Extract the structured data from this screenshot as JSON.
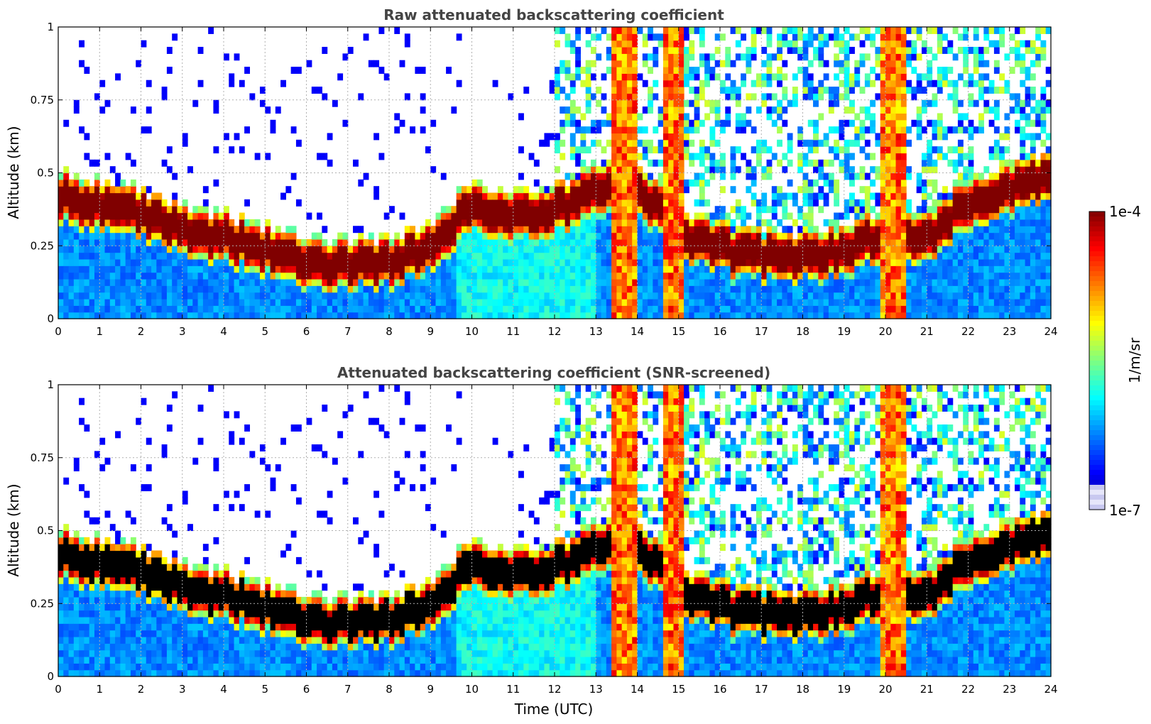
{
  "chart_data": [
    {
      "type": "heatmap",
      "title": "Raw attenuated backscattering coefficient",
      "xlabel": "",
      "ylabel": "Altitude (km)",
      "xlim": [
        0,
        24
      ],
      "ylim": [
        0,
        1
      ],
      "x_ticks": [
        "0",
        "1",
        "2",
        "3",
        "4",
        "5",
        "6",
        "7",
        "8",
        "9",
        "10",
        "11",
        "12",
        "13",
        "14",
        "15",
        "16",
        "17",
        "18",
        "19",
        "20",
        "21",
        "22",
        "23",
        "24"
      ],
      "y_ticks": [
        "0",
        "0.25",
        "0.5",
        "0.75",
        "1"
      ],
      "y_tick_values": [
        0,
        0.25,
        0.5,
        0.75,
        1
      ],
      "grid": true,
      "screened": false,
      "layer_center_km": [
        [
          0,
          0.42
        ],
        [
          1,
          0.39
        ],
        [
          2,
          0.36
        ],
        [
          3,
          0.31
        ],
        [
          4,
          0.28
        ],
        [
          5,
          0.24
        ],
        [
          6,
          0.2
        ],
        [
          7,
          0.18
        ],
        [
          8,
          0.2
        ],
        [
          9,
          0.24
        ],
        [
          10,
          0.39
        ],
        [
          11,
          0.36
        ],
        [
          12,
          0.37
        ],
        [
          13,
          0.45
        ],
        [
          14,
          0.44
        ],
        [
          15,
          0.3
        ],
        [
          16,
          0.24
        ],
        [
          17,
          0.22
        ],
        [
          18,
          0.21
        ],
        [
          19,
          0.24
        ],
        [
          20,
          0.3
        ],
        [
          21,
          0.27
        ],
        [
          22,
          0.4
        ],
        [
          23,
          0.45
        ],
        [
          24,
          0.48
        ]
      ],
      "plumes": [
        {
          "start": 13.35,
          "end": 13.95
        },
        {
          "start": 14.6,
          "end": 15.15
        },
        {
          "start": 19.9,
          "end": 20.45
        }
      ]
    },
    {
      "type": "heatmap",
      "title": "Attenuated backscattering coefficient (SNR-screened)",
      "xlabel": "Time (UTC)",
      "ylabel": "Altitude (km)",
      "xlim": [
        0,
        24
      ],
      "ylim": [
        0,
        1
      ],
      "x_ticks": [
        "0",
        "1",
        "2",
        "3",
        "4",
        "5",
        "6",
        "7",
        "8",
        "9",
        "10",
        "11",
        "12",
        "13",
        "14",
        "15",
        "16",
        "17",
        "18",
        "19",
        "20",
        "21",
        "22",
        "23",
        "24"
      ],
      "y_ticks": [
        "0",
        "0.25",
        "0.5",
        "0.75",
        "1"
      ],
      "y_tick_values": [
        0,
        0.25,
        0.5,
        0.75,
        1
      ],
      "grid": true,
      "screened": true,
      "layer_center_km": [
        [
          0,
          0.42
        ],
        [
          1,
          0.39
        ],
        [
          2,
          0.36
        ],
        [
          3,
          0.31
        ],
        [
          4,
          0.28
        ],
        [
          5,
          0.24
        ],
        [
          6,
          0.2
        ],
        [
          7,
          0.18
        ],
        [
          8,
          0.2
        ],
        [
          9,
          0.24
        ],
        [
          10,
          0.39
        ],
        [
          11,
          0.36
        ],
        [
          12,
          0.37
        ],
        [
          13,
          0.45
        ],
        [
          14,
          0.44
        ],
        [
          15,
          0.3
        ],
        [
          16,
          0.24
        ],
        [
          17,
          0.22
        ],
        [
          18,
          0.21
        ],
        [
          19,
          0.24
        ],
        [
          20,
          0.3
        ],
        [
          21,
          0.27
        ],
        [
          22,
          0.4
        ],
        [
          23,
          0.45
        ],
        [
          24,
          0.48
        ]
      ],
      "plumes": [
        {
          "start": 13.35,
          "end": 13.95
        },
        {
          "start": 14.6,
          "end": 15.15
        },
        {
          "start": 19.9,
          "end": 20.45
        }
      ]
    }
  ],
  "colorbar": {
    "label": "1/m/sr",
    "max_label": "1e-4",
    "min_label": "1e-7",
    "max_value": 0.0001,
    "min_value": 1e-07
  }
}
